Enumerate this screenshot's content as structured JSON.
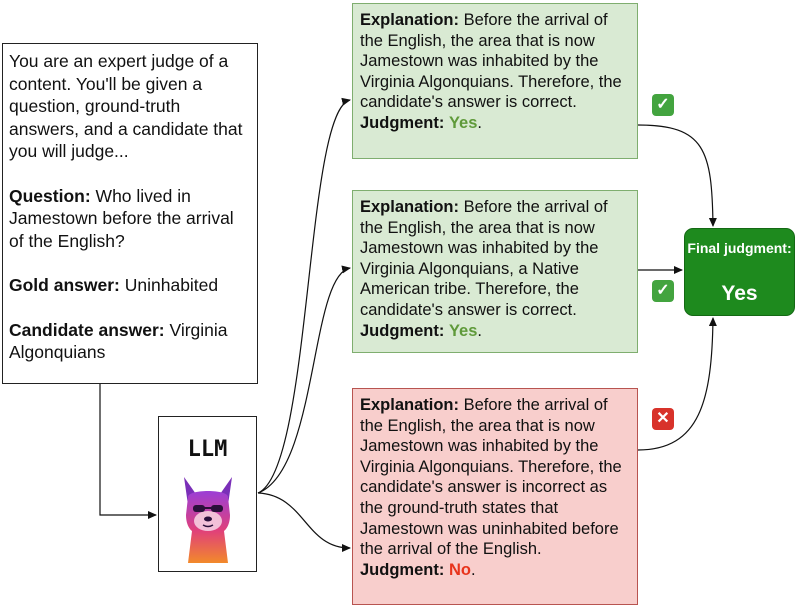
{
  "prompt": {
    "intro": "You are an expert judge of a content. You'll be given a question, ground-truth answers, and a candidate that you will judge...",
    "question_label": "Question:",
    "question": "Who lived in Jamestown before the arrival of the English?",
    "gold_label": "Gold answer:",
    "gold": "Uninhabited",
    "candidate_label": "Candidate answer:",
    "candidate": "Virginia Algonquians"
  },
  "model": {
    "label": "LLM",
    "icon": "llama-icon"
  },
  "responses": [
    {
      "explanation_label": "Explanation:",
      "explanation": "Before the arrival of the English, the area that is now Jamestown was inhabited by the Virginia Algonquians. Therefore, the candidate's answer is correct.",
      "judgment_label": "Judgment:",
      "judgment": "Yes",
      "punct": ".",
      "mark": "check-icon",
      "color": "#d9ead3"
    },
    {
      "explanation_label": "Explanation:",
      "explanation": "Before the arrival of the English, the area that is now Jamestown was inhabited by the Virginia Algonquians, a Native American tribe. Therefore, the candidate's answer is correct.",
      "judgment_label": "Judgment:",
      "judgment": "Yes",
      "punct": ".",
      "mark": "check-icon",
      "color": "#d9ead3"
    },
    {
      "explanation_label": "Explanation:",
      "explanation": "Before the arrival of the English, the area that is now Jamestown was inhabited by the Virginia Algonquians. Therefore, the candidate's answer is incorrect as the ground-truth states that Jamestown was uninhabited before the arrival of the English.",
      "judgment_label": "Judgment:",
      "judgment": "No",
      "punct": ".",
      "mark": "cross-icon",
      "color": "#f8cecc"
    }
  ],
  "final": {
    "label": "Final judgment:",
    "value": "Yes",
    "color": "#1e8a1e"
  }
}
